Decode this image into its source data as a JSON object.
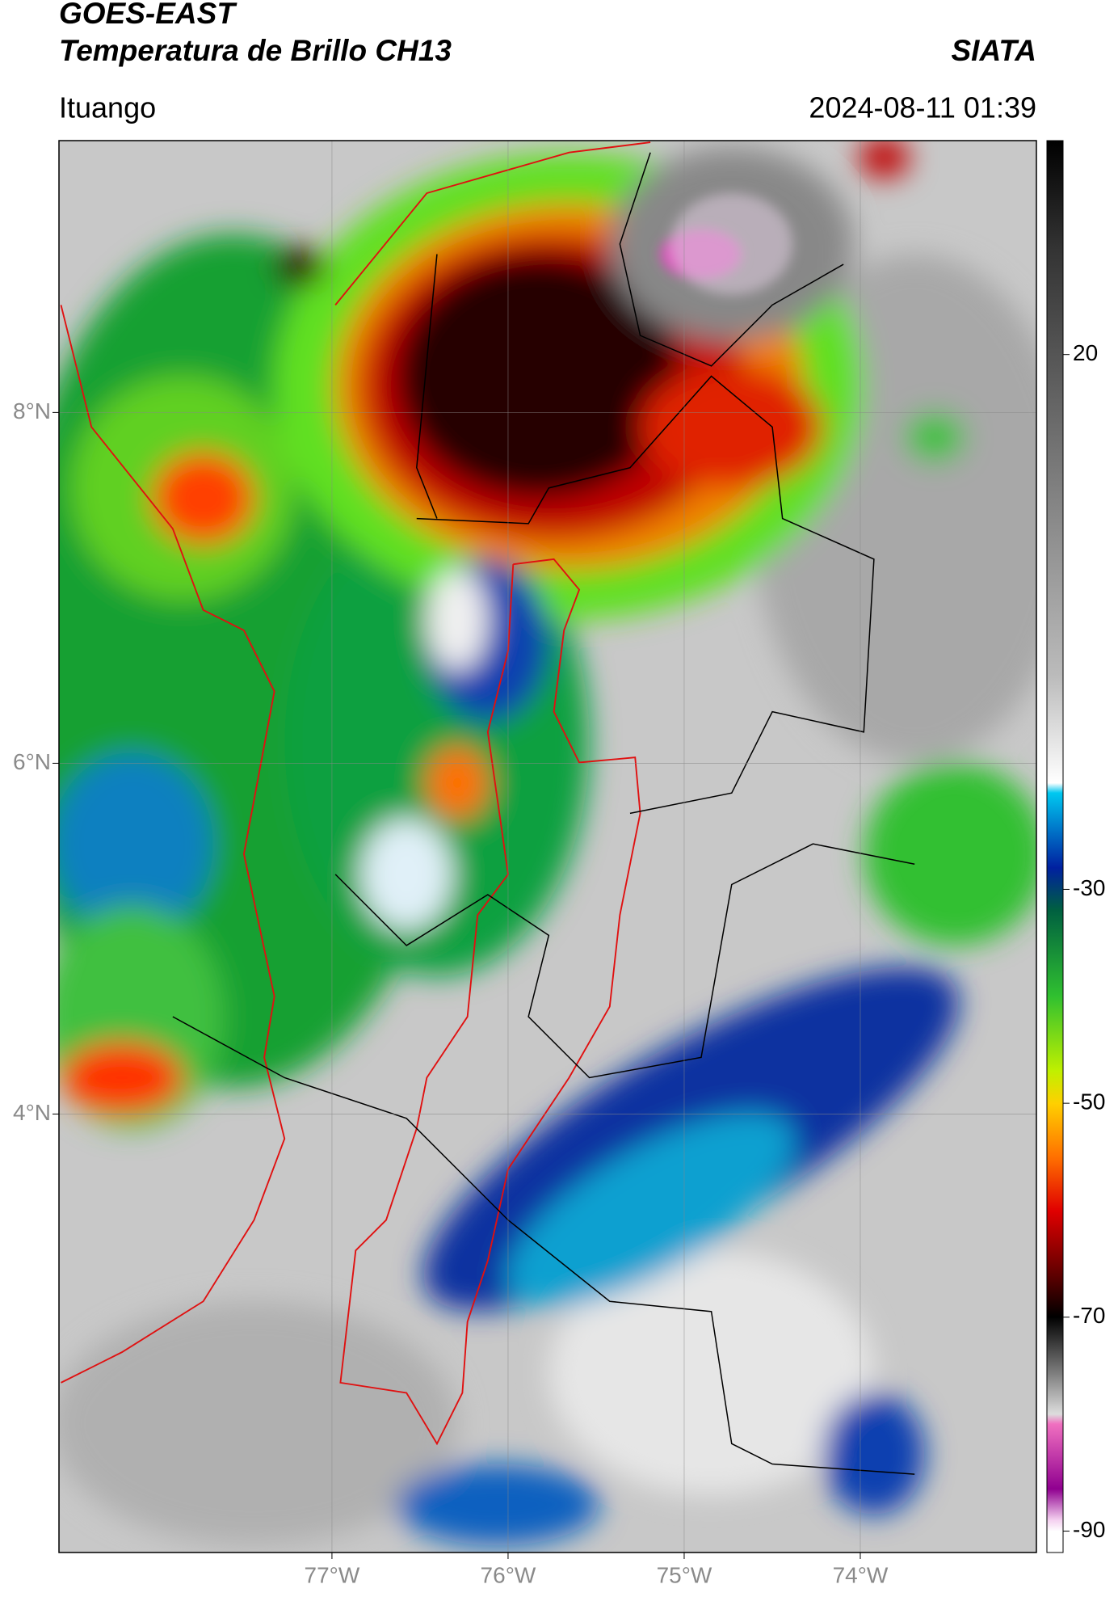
{
  "header": {
    "title": "GOES-EAST",
    "subtitle": "Temperatura de Brillo CH13",
    "source": "SIATA",
    "location": "Ituango",
    "datetime": "2024-08-11 01:39"
  },
  "map": {
    "xlim": [
      -78.55,
      -73.0
    ],
    "ylim": [
      1.5,
      9.55
    ],
    "xticks": [
      {
        "value": -77,
        "label": "77°W"
      },
      {
        "value": -76,
        "label": "76°W"
      },
      {
        "value": -75,
        "label": "75°W"
      },
      {
        "value": -74,
        "label": "74°W"
      }
    ],
    "yticks": [
      {
        "value": 4,
        "label": "4°N"
      },
      {
        "value": 6,
        "label": "6°N"
      },
      {
        "value": 8,
        "label": "8°N"
      }
    ],
    "grid": true
  },
  "colorbar": {
    "lim": [
      -92,
      40
    ],
    "ticks": [
      20,
      -30,
      -50,
      -70,
      -90
    ]
  }
}
